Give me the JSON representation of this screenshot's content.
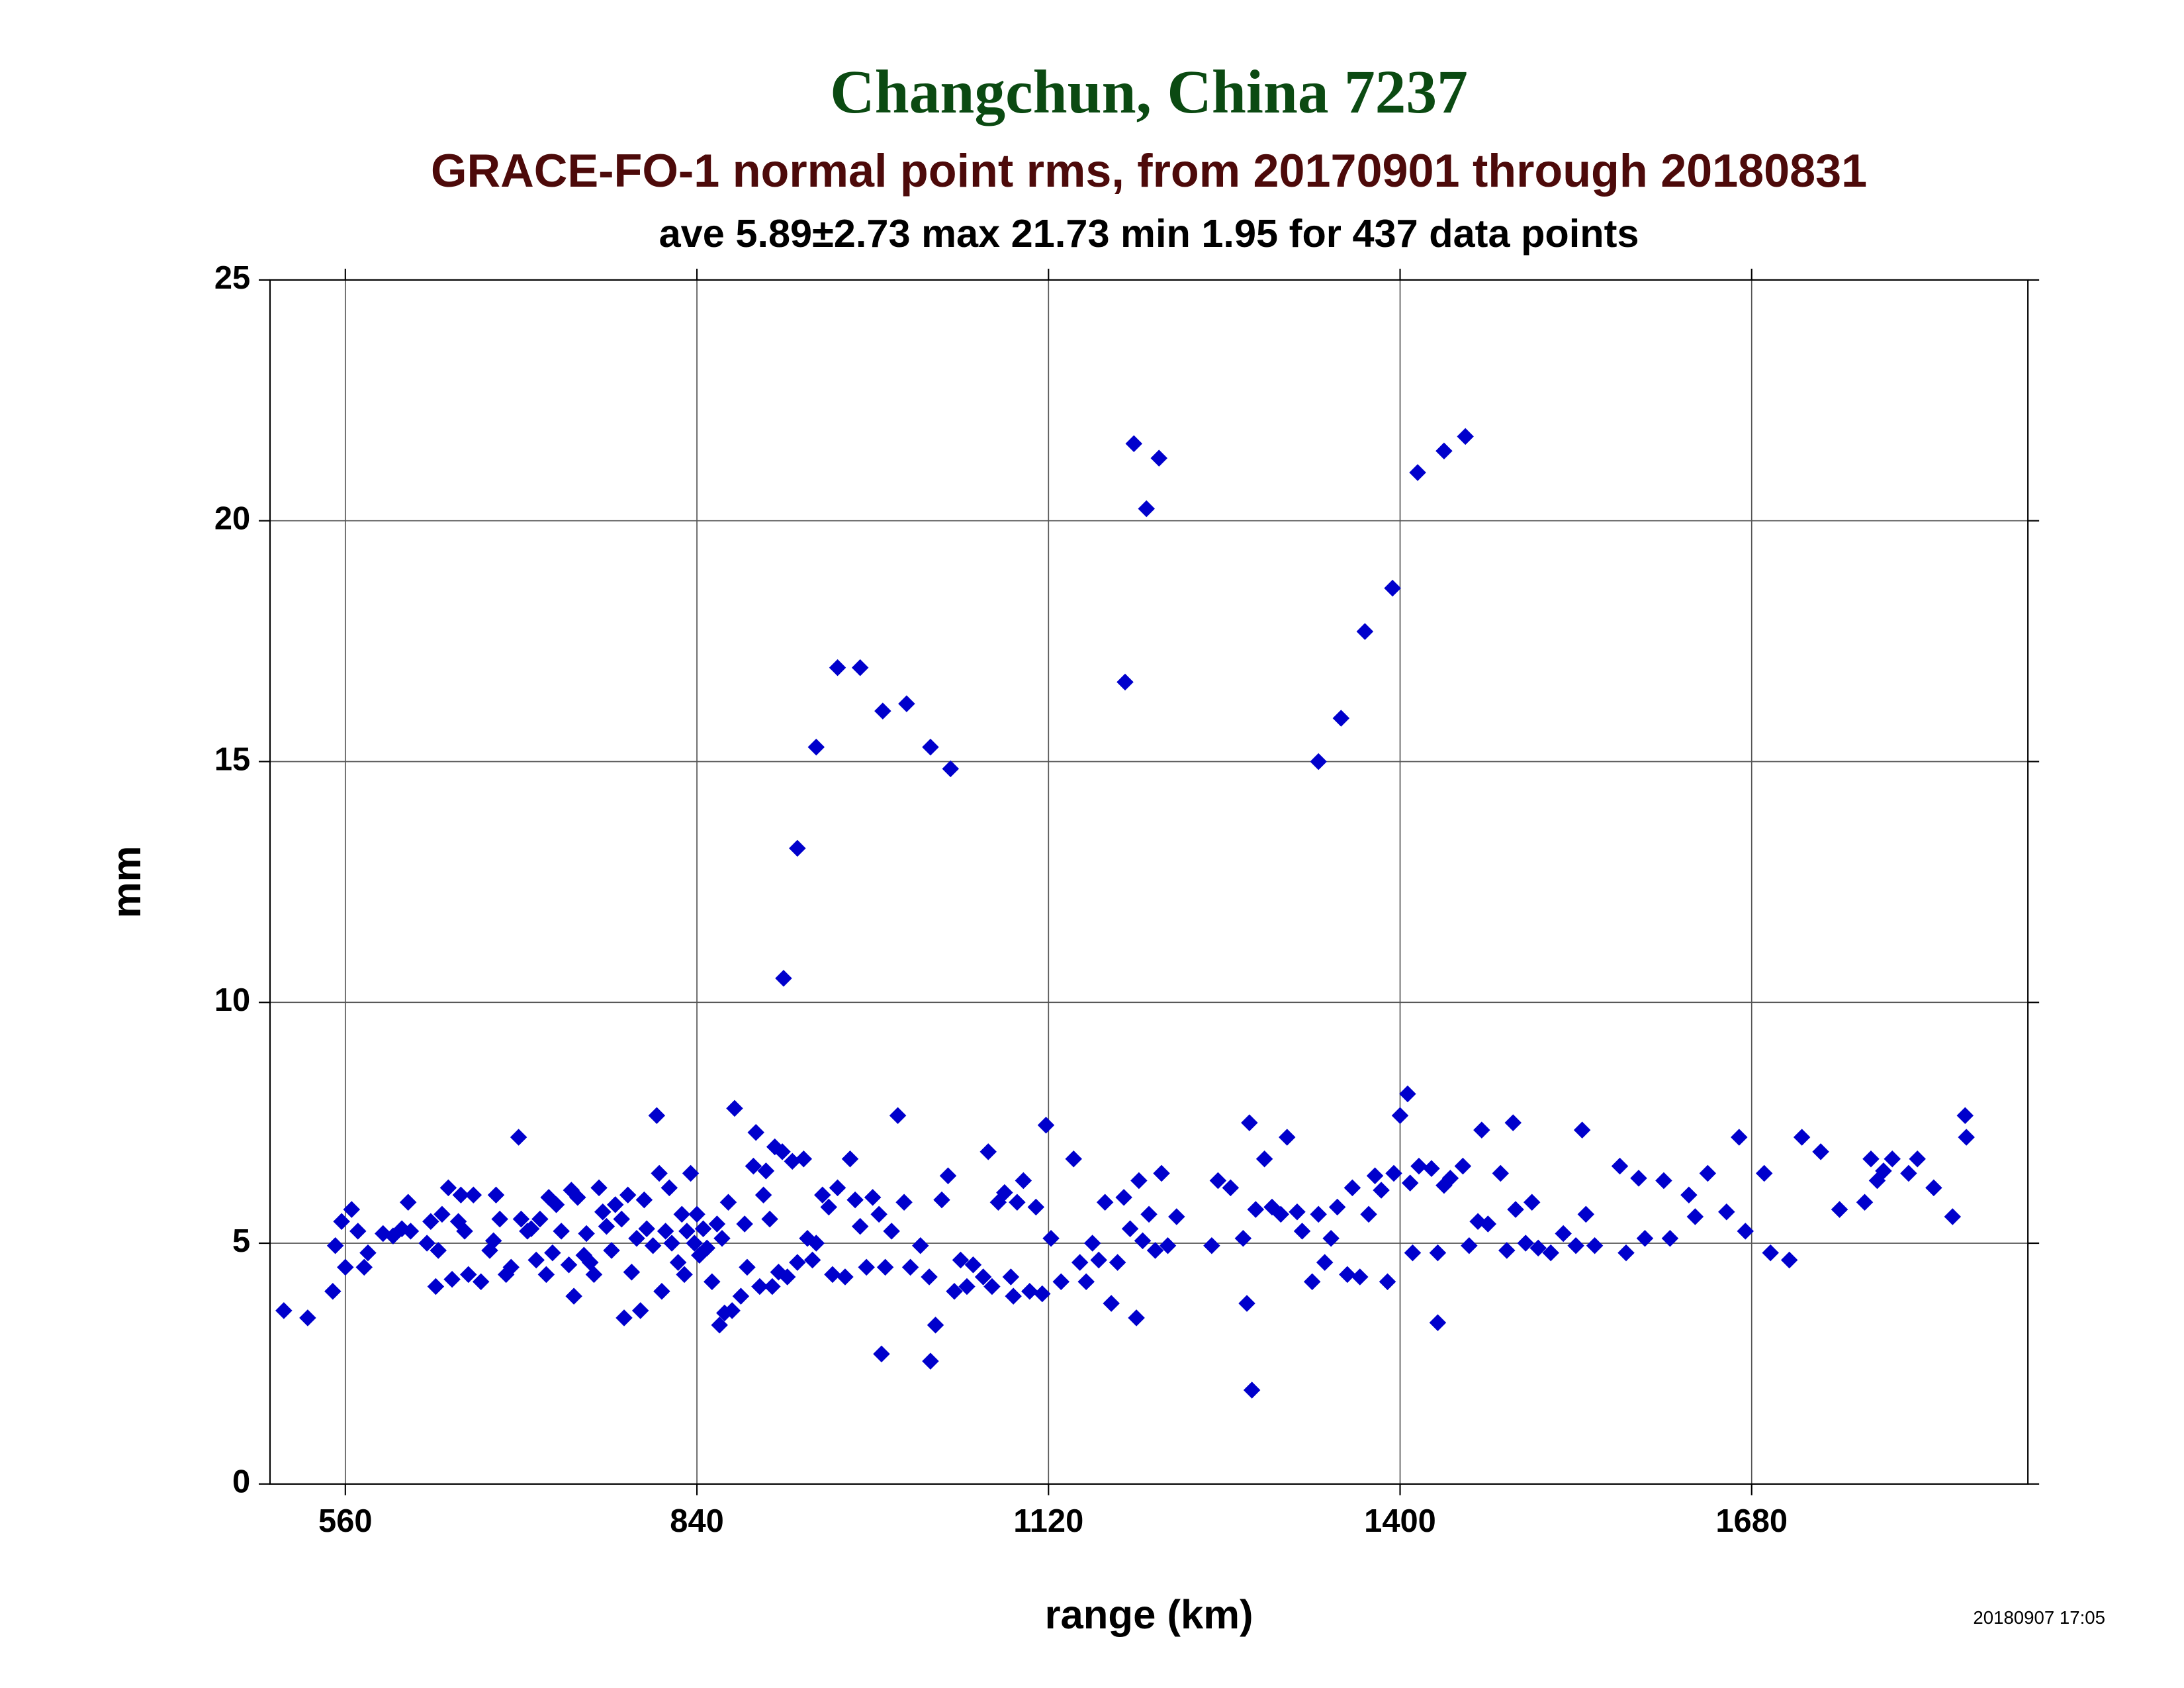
{
  "chart_data": {
    "type": "scatter",
    "title": "Changchun, China 7237",
    "subtitle": "GRACE-FO-1 normal point rms, from 20170901 through 20180831",
    "caption": "ave 5.89±2.73 max 21.73 min 1.95 for 437 data points",
    "xlabel": "range (km)",
    "ylabel": "mm",
    "timestamp": "20180907 17:05",
    "xlim": [
      500,
      1900
    ],
    "ylim": [
      0,
      25
    ],
    "xticks": [
      560,
      840,
      1120,
      1400,
      1680
    ],
    "yticks": [
      0,
      5,
      10,
      15,
      20,
      25
    ],
    "grid": true,
    "series": [
      {
        "color": "#0000cc",
        "x": [
          511,
          530,
          909,
          920,
          935,
          952,
          970,
          988,
          1007,
          1026,
          1042,
          1181,
          1188,
          1198,
          1208,
          1335,
          1353,
          1372,
          1394,
          1414,
          1435,
          1452,
          1282,
          987,
          1026,
          1430,
          1278,
          1406,
          1850,
          1851,
          550,
          552,
          557,
          560,
          565,
          570,
          575,
          578,
          590,
          598,
          605,
          610,
          612,
          625,
          628,
          632,
          634,
          637,
          642,
          645,
          650,
          652,
          655,
          658,
          662,
          668,
          675,
          678,
          680,
          683,
          688,
          692,
          698,
          700,
          705,
          708,
          712,
          715,
          720,
          722,
          725,
          728,
          732,
          738,
          740,
          742,
          745,
          750,
          752,
          755,
          758,
          762,
          765,
          768,
          772,
          775,
          780,
          782,
          785,
          788,
          792,
          795,
          798,
          800,
          805,
          808,
          810,
          812,
          815,
          818,
          820,
          825,
          828,
          830,
          832,
          835,
          838,
          840,
          842,
          845,
          848,
          852,
          856,
          858,
          860,
          862,
          865,
          868,
          870,
          875,
          878,
          880,
          885,
          887,
          890,
          893,
          895,
          898,
          900,
          902,
          905,
          908,
          912,
          916,
          920,
          925,
          928,
          932,
          935,
          940,
          945,
          948,
          952,
          958,
          962,
          966,
          970,
          975,
          980,
          985,
          990,
          995,
          1000,
          1005,
          1010,
          1018,
          1025,
          1030,
          1035,
          1040,
          1045,
          1050,
          1055,
          1060,
          1068,
          1072,
          1075,
          1080,
          1085,
          1090,
          1092,
          1095,
          1100,
          1105,
          1110,
          1115,
          1118,
          1122,
          1130,
          1140,
          1145,
          1150,
          1155,
          1160,
          1165,
          1170,
          1175,
          1180,
          1185,
          1190,
          1192,
          1195,
          1200,
          1205,
          1210,
          1215,
          1222,
          1250,
          1255,
          1265,
          1275,
          1280,
          1285,
          1292,
          1298,
          1305,
          1310,
          1318,
          1322,
          1330,
          1335,
          1340,
          1345,
          1350,
          1358,
          1362,
          1368,
          1375,
          1380,
          1385,
          1390,
          1395,
          1400,
          1408,
          1410,
          1415,
          1425,
          1430,
          1435,
          1440,
          1450,
          1455,
          1462,
          1465,
          1470,
          1480,
          1485,
          1490,
          1492,
          1500,
          1505,
          1510,
          1520,
          1530,
          1540,
          1545,
          1548,
          1555,
          1575,
          1580,
          1590,
          1595,
          1610,
          1615,
          1630,
          1635,
          1645,
          1660,
          1670,
          1675,
          1690,
          1695,
          1710,
          1720,
          1735,
          1750,
          1770,
          1775,
          1780,
          1785,
          1792,
          1805,
          1812,
          1825,
          1840
        ],
        "values": [
          3.6,
          3.45,
          10.5,
          13.2,
          15.3,
          16.95,
          16.95,
          16.05,
          16.2,
          15.3,
          14.85,
          16.65,
          21.6,
          20.25,
          21.3,
          15,
          15.9,
          17.7,
          18.6,
          21,
          21.45,
          21.75,
          1.95,
          2.7,
          2.55,
          3.35,
          3.75,
          8.1,
          7.65,
          7.2,
          4.0,
          4.95,
          5.45,
          4.5,
          5.7,
          5.25,
          4.5,
          4.8,
          5.2,
          5.15,
          5.3,
          5.85,
          5.25,
          5.0,
          5.45,
          4.1,
          4.85,
          5.6,
          6.15,
          4.25,
          5.45,
          6.0,
          5.25,
          4.35,
          6.0,
          4.2,
          4.85,
          5.05,
          6.0,
          5.5,
          4.35,
          4.5,
          7.2,
          5.5,
          5.25,
          5.3,
          4.65,
          5.5,
          4.35,
          5.95,
          4.8,
          5.8,
          5.25,
          4.55,
          6.1,
          3.9,
          5.95,
          4.75,
          5.2,
          4.6,
          4.35,
          6.15,
          5.65,
          5.35,
          4.85,
          5.8,
          5.5,
          3.45,
          6.0,
          4.4,
          5.1,
          3.6,
          5.9,
          5.3,
          4.95,
          7.65,
          6.45,
          4.0,
          5.25,
          6.15,
          5.0,
          4.6,
          5.6,
          4.35,
          5.25,
          6.45,
          5.0,
          5.6,
          4.75,
          5.3,
          4.9,
          4.2,
          5.4,
          3.3,
          5.1,
          3.55,
          5.85,
          3.6,
          7.8,
          3.9,
          5.4,
          4.5,
          6.6,
          7.3,
          4.1,
          6.0,
          6.5,
          5.5,
          4.1,
          7.0,
          4.4,
          6.9,
          4.3,
          6.7,
          4.6,
          6.75,
          5.1,
          4.65,
          5.0,
          6.0,
          5.75,
          4.35,
          6.15,
          4.3,
          6.75,
          5.9,
          5.35,
          4.5,
          5.95,
          5.6,
          4.5,
          5.25,
          7.65,
          5.85,
          4.5,
          4.95,
          4.3,
          3.3,
          5.9,
          6.4,
          4.0,
          4.65,
          4.1,
          4.55,
          4.3,
          6.9,
          4.1,
          5.85,
          6.05,
          4.3,
          3.9,
          5.85,
          6.3,
          4.0,
          5.75,
          3.95,
          7.45,
          5.1,
          4.2,
          6.75,
          4.6,
          4.2,
          5.0,
          4.65,
          5.85,
          3.75,
          4.6,
          5.95,
          5.3,
          3.45,
          6.3,
          5.05,
          5.6,
          4.85,
          6.45,
          4.95,
          5.55,
          4.95,
          6.3,
          6.15,
          5.1,
          7.5,
          5.7,
          6.75,
          5.75,
          5.6,
          7.2,
          5.65,
          5.25,
          4.2,
          5.6,
          4.6,
          5.1,
          5.75,
          4.35,
          6.15,
          4.3,
          5.6,
          6.4,
          6.1,
          4.2,
          6.45,
          7.65,
          6.25,
          4.8,
          6.6,
          6.55,
          4.8,
          6.2,
          6.35,
          6.6,
          4.95,
          5.45,
          7.35,
          5.4,
          6.45,
          4.85,
          7.5,
          5.7,
          5.0,
          5.85,
          4.9,
          4.8,
          5.2,
          4.95,
          7.35,
          5.6,
          4.95,
          6.6,
          4.8,
          6.35,
          5.1,
          6.3,
          5.1,
          6.0,
          5.55,
          6.45,
          5.65,
          7.2,
          5.25,
          6.45,
          4.8,
          4.65,
          7.2,
          6.9,
          5.7,
          5.85,
          6.75,
          6.3,
          6.5,
          6.75,
          6.45,
          6.75,
          6.15,
          5.55
        ]
      }
    ]
  }
}
